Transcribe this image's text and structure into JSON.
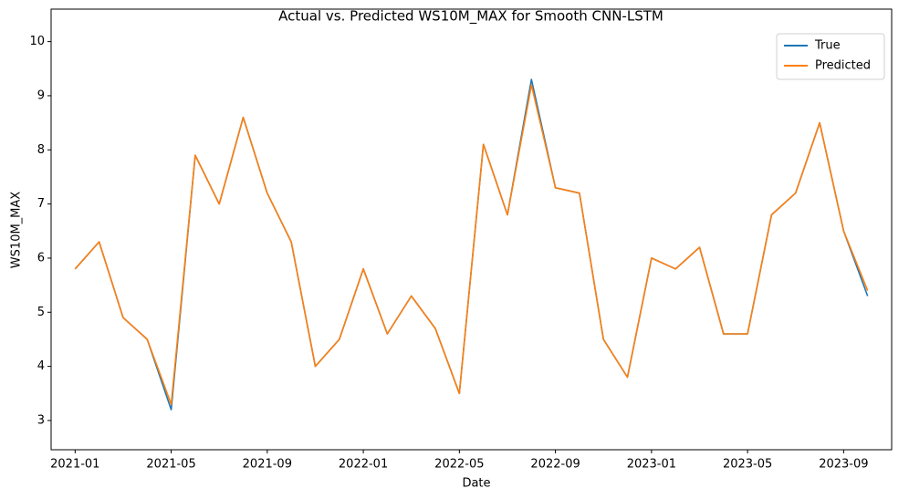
{
  "chart_data": {
    "type": "line",
    "title": "Actual vs. Predicted WS10M_MAX for Smooth CNN-LSTM",
    "x_label": "Date",
    "y_label": "WS10M_MAX",
    "x": [
      "2021-01",
      "2021-02",
      "2021-03",
      "2021-04",
      "2021-05",
      "2021-06",
      "2021-07",
      "2021-08",
      "2021-09",
      "2021-10",
      "2021-11",
      "2021-12",
      "2022-01",
      "2022-02",
      "2022-03",
      "2022-04",
      "2022-05",
      "2022-06",
      "2022-07",
      "2022-08",
      "2022-09",
      "2022-10",
      "2022-11",
      "2022-12",
      "2023-01",
      "2023-02",
      "2023-03",
      "2023-04",
      "2023-05",
      "2023-06",
      "2023-07",
      "2023-08",
      "2023-09",
      "2023-10"
    ],
    "series": [
      {
        "name": "True",
        "color": "#1f77b4",
        "values": [
          5.8,
          6.3,
          4.9,
          4.5,
          3.2,
          7.9,
          7.0,
          8.6,
          7.2,
          6.3,
          4.0,
          4.5,
          5.8,
          4.6,
          5.3,
          4.7,
          3.5,
          8.1,
          6.8,
          9.3,
          7.3,
          7.2,
          4.5,
          3.8,
          6.0,
          5.8,
          6.2,
          4.6,
          4.6,
          6.8,
          7.2,
          8.5,
          6.5,
          5.3
        ]
      },
      {
        "name": "Predicted",
        "color": "#ff7f0e",
        "values": [
          5.8,
          6.3,
          4.9,
          4.5,
          3.3,
          7.9,
          7.0,
          8.6,
          7.2,
          6.3,
          4.0,
          4.5,
          5.8,
          4.6,
          5.3,
          4.7,
          3.5,
          8.1,
          6.8,
          9.2,
          7.3,
          7.2,
          4.5,
          3.8,
          6.0,
          5.8,
          6.2,
          4.6,
          4.6,
          6.8,
          7.2,
          8.5,
          6.5,
          5.4
        ]
      }
    ],
    "xlim": [
      "2020-12",
      "2023-11"
    ],
    "xticks": [
      "2021-01",
      "2021-05",
      "2021-09",
      "2022-01",
      "2022-05",
      "2022-09",
      "2023-01",
      "2023-05",
      "2023-09"
    ],
    "ylim": [
      2.46,
      10.6
    ],
    "yticks": [
      3,
      4,
      5,
      6,
      7,
      8,
      9,
      10
    ],
    "legend": "upper right"
  }
}
